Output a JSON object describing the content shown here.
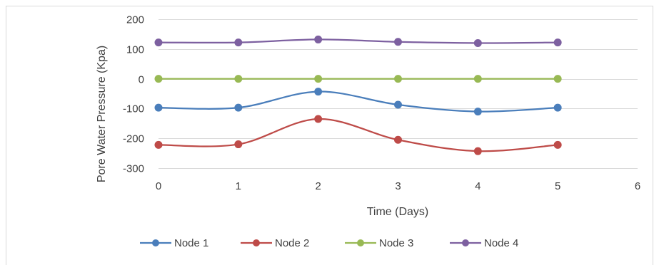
{
  "chart_data": {
    "type": "line",
    "xlabel": "Time  (Days)",
    "ylabel": "Pore Water Pressure (Kpa)",
    "xlim": [
      0,
      6
    ],
    "ylim": [
      -300,
      200
    ],
    "x_ticks": [
      "0",
      "1",
      "2",
      "3",
      "4",
      "5",
      "6"
    ],
    "y_ticks": [
      "200",
      "100",
      "0",
      "-100",
      "-200",
      "-300"
    ],
    "grid": "horizontal",
    "legend_position": "bottom",
    "smooth": true,
    "x": [
      0,
      1,
      2,
      3,
      4,
      5
    ],
    "series": [
      {
        "name": "Node 1",
        "color": "#4a7ebb",
        "values": [
          -97,
          -97,
          -43,
          -87,
          -110,
          -97
        ]
      },
      {
        "name": "Node 2",
        "color": "#be4b48",
        "values": [
          -222,
          -220,
          -135,
          -205,
          -243,
          -222
        ]
      },
      {
        "name": "Node 3",
        "color": "#98b954",
        "values": [
          0,
          0,
          0,
          0,
          0,
          0
        ]
      },
      {
        "name": "Node 4",
        "color": "#7d60a0",
        "values": [
          122,
          122,
          132,
          124,
          120,
          122
        ]
      }
    ]
  }
}
